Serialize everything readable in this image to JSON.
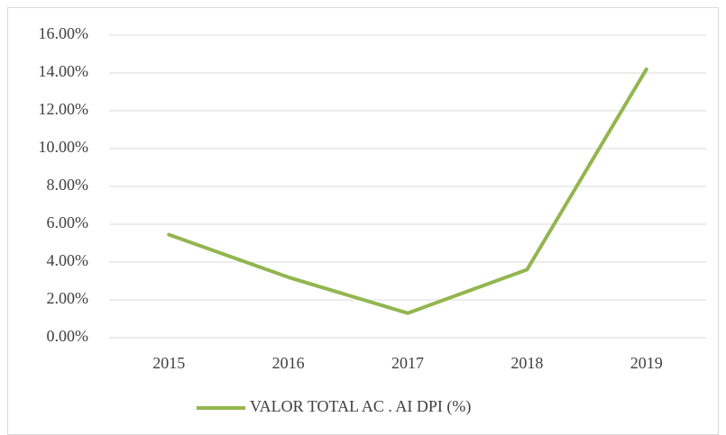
{
  "chart_data": {
    "type": "line",
    "categories": [
      "2015",
      "2016",
      "2017",
      "2018",
      "2019"
    ],
    "series": [
      {
        "name": "VALOR TOTAL AC . AI DPI (%)",
        "color": "#92b64f",
        "values": [
          5.45,
          3.2,
          1.3,
          3.6,
          14.2
        ]
      }
    ],
    "ylim": [
      0,
      16
    ],
    "yticks": [
      {
        "value": 0,
        "label": "0.00%"
      },
      {
        "value": 2,
        "label": "2.00%"
      },
      {
        "value": 4,
        "label": "4.00%"
      },
      {
        "value": 6,
        "label": "6.00%"
      },
      {
        "value": 8,
        "label": "8.00%"
      },
      {
        "value": 10,
        "label": "10.00%"
      },
      {
        "value": 12,
        "label": "12.00%"
      },
      {
        "value": 14,
        "label": "14.00%"
      },
      {
        "value": 16,
        "label": "16.00%"
      }
    ],
    "grid": true,
    "legend": "bottom"
  }
}
